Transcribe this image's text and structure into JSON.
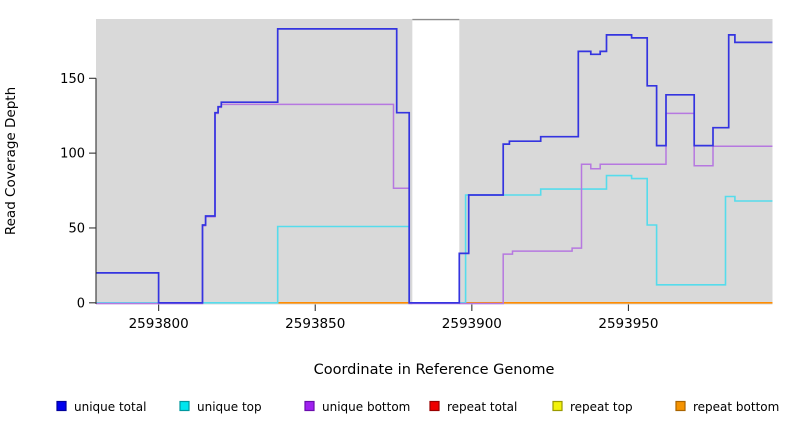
{
  "chart": {
    "x_axis_title": "Coordinate in Reference Genome",
    "y_axis_title": "Read Coverage Depth",
    "legend_items": [
      {
        "label": "unique total",
        "fill": "#0000ee",
        "border": "#00009b"
      },
      {
        "label": "unique top",
        "fill": "#00e5ee",
        "border": "#00989e"
      },
      {
        "label": "unique bottom",
        "fill": "#a020f0",
        "border": "#6a0dad"
      },
      {
        "label": "repeat total",
        "fill": "#ee0000",
        "border": "#990000"
      },
      {
        "label": "repeat top",
        "fill": "#f2f20c",
        "border": "#9a9a00"
      },
      {
        "label": "repeat bottom",
        "fill": "#f59300",
        "border": "#a96400"
      }
    ]
  },
  "chart_data": {
    "type": "line",
    "style": "step",
    "title": "",
    "xlabel": "Coordinate in Reference Genome",
    "ylabel": "Read Coverage Depth",
    "xlim": [
      2593780,
      2593996
    ],
    "ylim": [
      0,
      190
    ],
    "x_ticks": [
      2593800,
      2593850,
      2593900,
      2593950
    ],
    "y_ticks": [
      0,
      50,
      100,
      150
    ],
    "grid": false,
    "legend_position": "bottom",
    "plot_background": "#d9d9d9",
    "masked_region": {
      "x_start": 2593881,
      "x_end": 2593896,
      "fill": "#ffffff",
      "border_top": "#8c8c8c"
    },
    "series": [
      {
        "name": "repeat total",
        "color": "#e8718d",
        "width": 1.4,
        "x_end": 2593814,
        "points": [
          [
            2593780,
            0
          ]
        ]
      },
      {
        "name": "repeat top",
        "color": "#63c98c",
        "width": 1.4,
        "x_end": 2593839,
        "points": [
          [
            2593814,
            0
          ]
        ]
      },
      {
        "name": "repeat bottom",
        "color": "#ff8c00",
        "width": 1.6,
        "x_end": 2593996,
        "points": [
          [
            2593838,
            0
          ]
        ]
      },
      {
        "name": "unique top",
        "color": "#55dcec",
        "width": 1.6,
        "x_end": 2593996,
        "points": [
          [
            2593780,
            0
          ],
          [
            2593838,
            51
          ],
          [
            2593880,
            0
          ],
          [
            2593898,
            72
          ],
          [
            2593922,
            76
          ],
          [
            2593943,
            85
          ],
          [
            2593951,
            83
          ],
          [
            2593956,
            52
          ],
          [
            2593959,
            12
          ],
          [
            2593981,
            71
          ],
          [
            2593984,
            68
          ]
        ]
      },
      {
        "name": "unique bottom",
        "color": "#b678e0",
        "width": 1.5,
        "dy": 0.7,
        "x_end": 2593996,
        "points": [
          [
            2593780,
            0
          ],
          [
            2593814,
            52
          ],
          [
            2593815,
            58
          ],
          [
            2593818,
            127
          ],
          [
            2593819,
            131
          ],
          [
            2593820,
            133
          ],
          [
            2593875,
            77
          ],
          [
            2593880,
            0
          ],
          [
            2593910,
            33
          ],
          [
            2593913,
            35
          ],
          [
            2593932,
            37
          ],
          [
            2593935,
            93
          ],
          [
            2593938,
            90
          ],
          [
            2593941,
            93
          ],
          [
            2593962,
            127
          ],
          [
            2593971,
            92
          ],
          [
            2593977,
            105
          ]
        ]
      },
      {
        "name": "unique total",
        "color": "#3434e0",
        "width": 1.7,
        "x_end": 2593996,
        "points": [
          [
            2593780,
            20
          ],
          [
            2593800,
            0
          ],
          [
            2593814,
            52
          ],
          [
            2593815,
            58
          ],
          [
            2593818,
            127
          ],
          [
            2593819,
            131
          ],
          [
            2593820,
            134
          ],
          [
            2593838,
            183
          ],
          [
            2593876,
            127
          ],
          [
            2593880,
            0
          ],
          [
            2593896,
            33
          ],
          [
            2593899,
            72
          ],
          [
            2593910,
            106
          ],
          [
            2593912,
            108
          ],
          [
            2593922,
            111
          ],
          [
            2593934,
            168
          ],
          [
            2593938,
            166
          ],
          [
            2593941,
            168
          ],
          [
            2593943,
            179
          ],
          [
            2593951,
            177
          ],
          [
            2593956,
            145
          ],
          [
            2593959,
            105
          ],
          [
            2593962,
            139
          ],
          [
            2593971,
            105
          ],
          [
            2593977,
            117
          ],
          [
            2593982,
            179
          ],
          [
            2593984,
            174
          ]
        ]
      }
    ]
  }
}
